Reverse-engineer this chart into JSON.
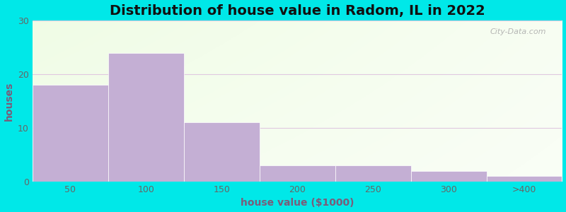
{
  "title": "Distribution of house value in Radom, IL in 2022",
  "xlabel": "house value ($1000)",
  "ylabel": "houses",
  "categories": [
    "50",
    "100",
    "150",
    "200",
    "250",
    "300",
    ">400"
  ],
  "values": [
    18,
    24,
    11,
    3,
    3,
    2,
    1
  ],
  "bar_color": "#c4afd4",
  "bar_edge_color": "#c4afd4",
  "ylim": [
    0,
    30
  ],
  "yticks": [
    0,
    10,
    20,
    30
  ],
  "background_outer": "#00e8e8",
  "title_fontsize": 14,
  "axis_label_fontsize": 10,
  "tick_fontsize": 9,
  "watermark": "City-Data.com",
  "grid_color": "#e0c8e0",
  "label_color": "#7a5c7a",
  "tick_color": "#666666",
  "title_color": "#111111"
}
